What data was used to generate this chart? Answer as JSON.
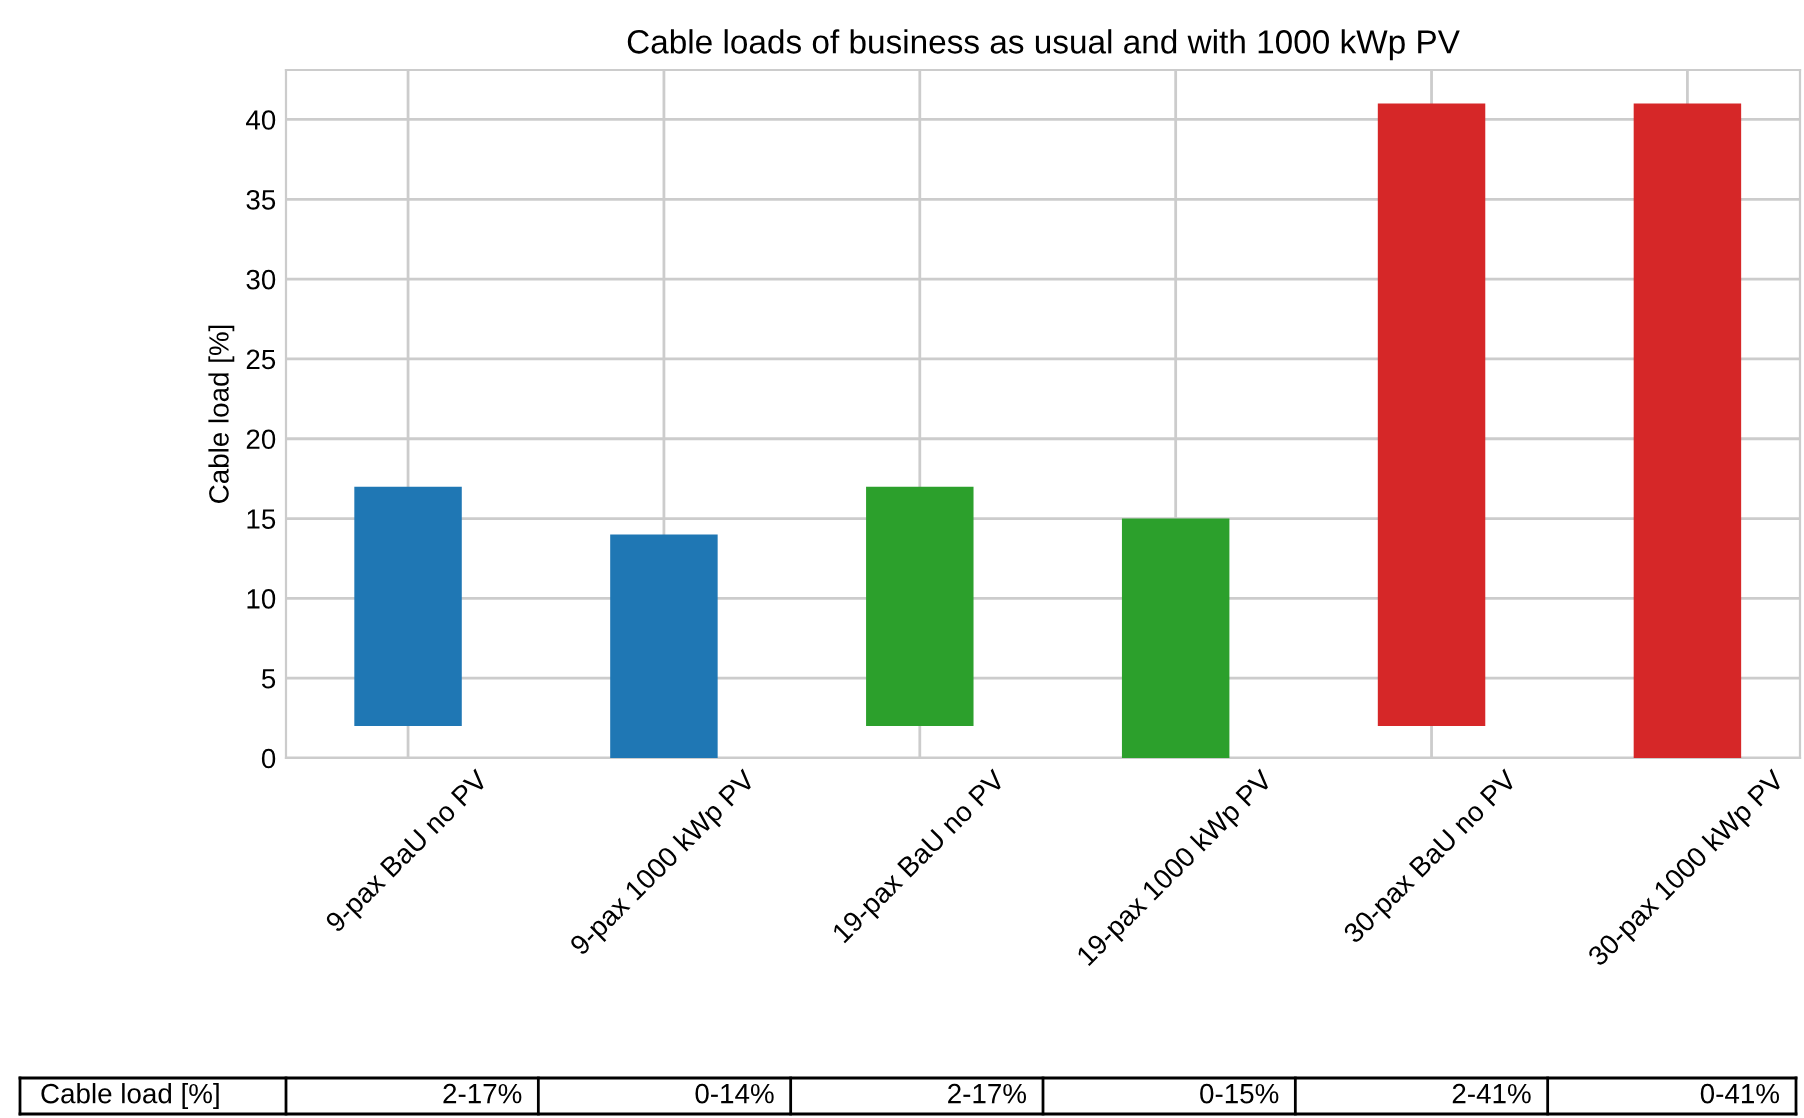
{
  "chart_data": {
    "type": "bar",
    "title": "Cable loads of business as usual and with 1000 kWp PV",
    "ylabel": "Cable load [%]",
    "categories": [
      "9-pax BaU no PV",
      "9-pax 1000 kWp PV",
      "19-pax BaU no PV",
      "19-pax 1000 kWp PV",
      "30-pax BaU no PV",
      "30-pax 1000 kWp PV"
    ],
    "base": [
      2,
      0,
      2,
      0,
      2,
      0
    ],
    "values": [
      15,
      14,
      15,
      15,
      39,
      41
    ],
    "colors": [
      "#1f77b4",
      "#1f77b4",
      "#2ca02c",
      "#2ca02c",
      "#d62728",
      "#d62728"
    ],
    "annotations": [
      "Cable load [%]",
      "2-17%",
      "0-14%",
      "2-17%",
      "0-15%",
      "2-41%",
      "0-41%"
    ],
    "ylim": [
      0,
      43.1
    ],
    "yticks": [
      0,
      5,
      10,
      15,
      20,
      25,
      30,
      35,
      40
    ],
    "grid": true
  }
}
